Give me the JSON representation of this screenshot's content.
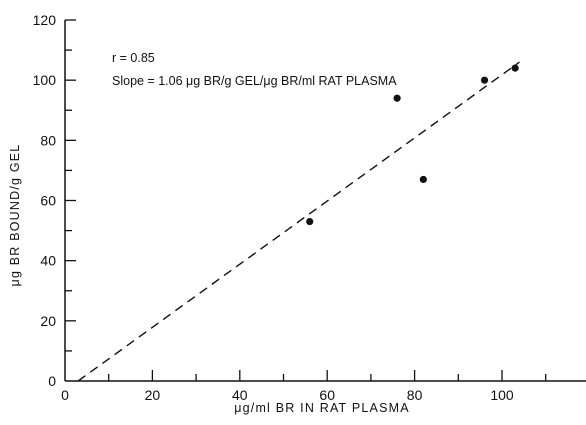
{
  "chart_data": {
    "type": "scatter",
    "title": "",
    "xlabel": "μg/ml BR IN RAT PLASMA",
    "ylabel": "μg BR BOUND/g GEL",
    "xlim": [
      0,
      110
    ],
    "ylim": [
      0,
      120
    ],
    "x_ticks": [
      "0",
      "20",
      "40",
      "60",
      "80",
      "100"
    ],
    "y_ticks": [
      "0",
      "20",
      "40",
      "60",
      "80",
      "100",
      "120"
    ],
    "grid": false,
    "points": [
      {
        "x": 56,
        "y": 53
      },
      {
        "x": 76,
        "y": 94
      },
      {
        "x": 82,
        "y": 67
      },
      {
        "x": 96,
        "y": 100
      },
      {
        "x": 103,
        "y": 104
      }
    ],
    "fit_line": {
      "style": "dashed",
      "x1": 3,
      "y1": 0,
      "x2": 104,
      "y2": 106
    },
    "annotations": {
      "r_label": "r = 0.85",
      "slope_label": "Slope = 1.06 μg BR/g GEL/μg BR/ml RAT PLASMA"
    }
  }
}
